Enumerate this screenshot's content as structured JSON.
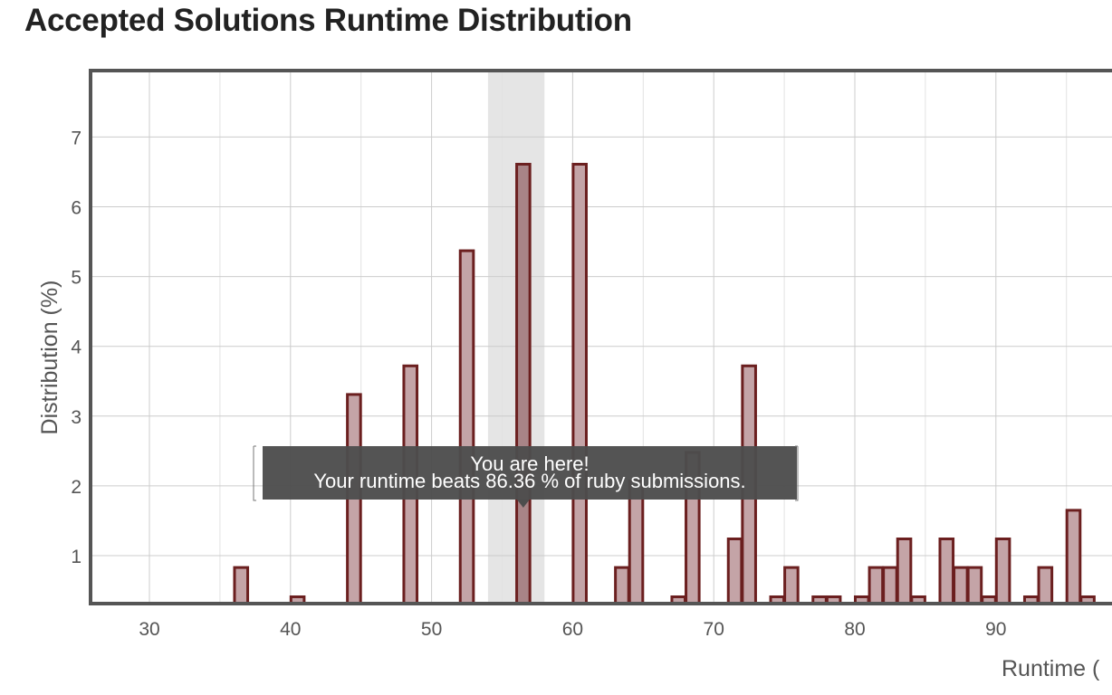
{
  "page": {
    "title": "Accepted Solutions Runtime Distribution"
  },
  "colors": {
    "bar_fill": "#c4a4a7",
    "bar_stroke": "#6b1f1f",
    "highlight_bar_fill": "#a88487",
    "highlight_band": "#e5e5e5",
    "grid": "#cccccc",
    "axis": "#555555",
    "tooltip_bg": "#4d4d4d"
  },
  "tooltip": {
    "line1": "You are here!",
    "line2": "Your runtime beats 86.36 % of ruby submissions."
  },
  "chart_data": {
    "type": "bar",
    "title": "Accepted Solutions Runtime Distribution",
    "xlabel": "Runtime (",
    "ylabel": "Distribution (%)",
    "xlim": [
      26,
      96.3
    ],
    "ylim": [
      0.3,
      8
    ],
    "x_ticks": [
      30,
      40,
      50,
      60,
      70,
      80,
      90
    ],
    "y_ticks": [
      1,
      2,
      3,
      4,
      5,
      6,
      7
    ],
    "grid": true,
    "bar_width": 1,
    "highlight_range": [
      54,
      58
    ],
    "highlight_x": 56,
    "x": [
      36,
      40,
      44,
      48,
      52,
      56,
      60,
      63,
      64,
      67,
      68,
      71,
      72,
      74,
      75,
      77,
      78,
      80,
      81,
      82,
      83,
      84,
      86,
      87,
      88,
      89,
      90,
      92,
      93,
      95,
      96
    ],
    "values": [
      0.83,
      0.41,
      3.31,
      3.72,
      5.37,
      6.61,
      6.61,
      0.83,
      2.07,
      0.41,
      2.48,
      1.24,
      3.72,
      0.41,
      0.83,
      0.41,
      0.41,
      0.41,
      0.83,
      0.83,
      1.24,
      0.41,
      1.24,
      0.83,
      0.83,
      0.41,
      1.24,
      0.41,
      0.83,
      1.65,
      0.41
    ]
  }
}
